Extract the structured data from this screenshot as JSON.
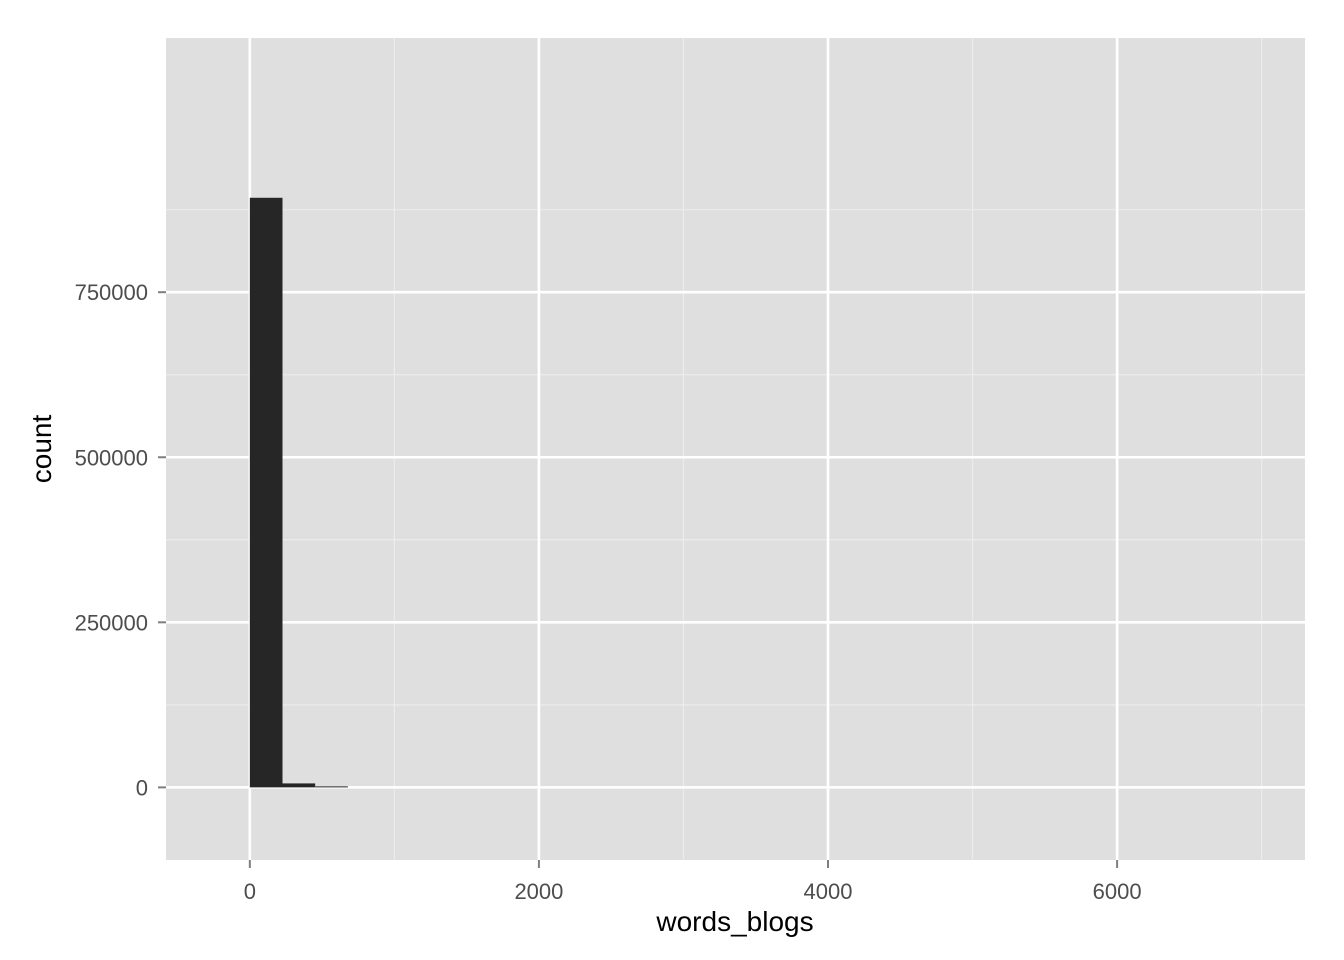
{
  "chart_data": {
    "type": "bar",
    "xlabel": "words_blogs",
    "ylabel": "count",
    "xlim": [
      -580,
      7300
    ],
    "ylim": [
      -110000,
      1135000
    ],
    "x_ticks": [
      {
        "value": 0,
        "label": "0"
      },
      {
        "value": 2000,
        "label": "2000"
      },
      {
        "value": 4000,
        "label": "4000"
      },
      {
        "value": 6000,
        "label": "6000"
      }
    ],
    "x_minor_ticks": [
      1000,
      3000,
      5000,
      7000
    ],
    "y_ticks": [
      {
        "value": 0,
        "label": "0"
      },
      {
        "value": 250000,
        "label": "250000"
      },
      {
        "value": 500000,
        "label": "500000"
      },
      {
        "value": 750000,
        "label": "750000"
      }
    ],
    "y_minor_ticks": [
      125000,
      375000,
      625000,
      875000
    ],
    "bins": [
      {
        "x0": 0,
        "x1": 226,
        "count": 893000
      },
      {
        "x0": 226,
        "x1": 452,
        "count": 6000
      },
      {
        "x0": 452,
        "x1": 678,
        "count": 600
      }
    ],
    "grid": true,
    "legend": "none"
  },
  "colors": {
    "panel": "#dfdfdf",
    "grid_major": "#ffffff",
    "grid_minor": "#ececec",
    "bar": "#262626",
    "tick_label": "#4d4d4d",
    "title": "#000000"
  }
}
